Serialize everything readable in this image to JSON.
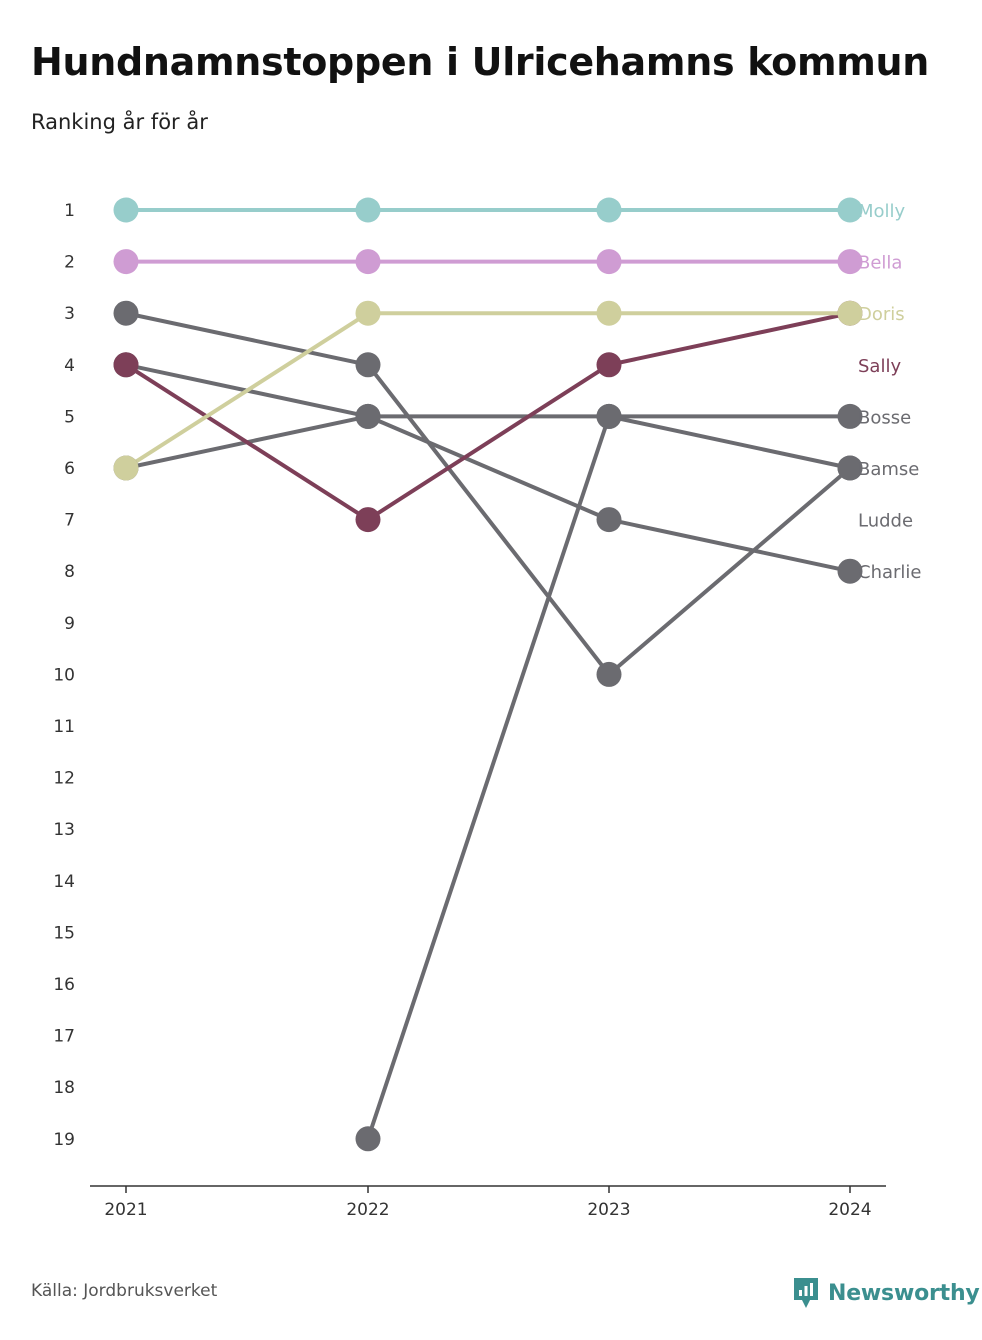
{
  "title": "Hundnamnstoppen i Ulricehamns kommun",
  "subtitle": "Ranking år för år",
  "source": "Källa: Jordbruksverket",
  "brand": {
    "name": "Newsworthy",
    "icon": "bar-chart-icon",
    "color": "#3b8f8f"
  },
  "chart_data": {
    "type": "line",
    "title": "Hundnamnstoppen i Ulricehamns kommun",
    "subtitle": "Ranking år för år",
    "x": [
      "2021",
      "2022",
      "2023",
      "2024"
    ],
    "y_ticks": [
      1,
      2,
      3,
      4,
      5,
      6,
      7,
      8,
      9,
      10,
      11,
      12,
      13,
      14,
      15,
      16,
      17,
      18,
      19
    ],
    "y_reversed": true,
    "ylim": [
      1,
      19
    ],
    "grid": false,
    "series": [
      {
        "name": "Molly",
        "values": [
          1,
          1,
          1,
          1
        ],
        "color": "#97cdcb"
      },
      {
        "name": "Bella",
        "values": [
          2,
          2,
          2,
          2
        ],
        "color": "#cf9cd3"
      },
      {
        "name": "Doris",
        "values": [
          6,
          3,
          3,
          3
        ],
        "color": "#cfcf9d"
      },
      {
        "name": "Sally",
        "values": [
          4,
          7,
          4,
          3
        ],
        "color": "#7d3f58"
      },
      {
        "name": "Bosse",
        "values": [
          6,
          5,
          5,
          5
        ],
        "color": "#6b6b70"
      },
      {
        "name": "Bamse",
        "values": [
          3,
          4,
          10,
          6
        ],
        "color": "#6b6b70"
      },
      {
        "name": "Ludde",
        "values": [
          null,
          19,
          5,
          6
        ],
        "color": "#6b6b70"
      },
      {
        "name": "Charlie",
        "values": [
          4,
          5,
          7,
          8
        ],
        "color": "#6b6b70"
      }
    ],
    "end_labels": [
      {
        "text": "Molly",
        "rank": 1,
        "color": "#97cdcb"
      },
      {
        "text": "Bella",
        "rank": 2,
        "color": "#cf9cd3"
      },
      {
        "text": "Doris",
        "rank": 3,
        "color": "#cfcf9d"
      },
      {
        "text": "Sally",
        "rank": 4,
        "color": "#7d3f58"
      },
      {
        "text": "Bosse",
        "rank": 5,
        "color": "#6b6b70"
      },
      {
        "text": "Bamse",
        "rank": 6,
        "color": "#6b6b70"
      },
      {
        "text": "Ludde",
        "rank": 7,
        "color": "#6b6b70"
      },
      {
        "text": "Charlie",
        "rank": 8,
        "color": "#6b6b70"
      }
    ]
  }
}
